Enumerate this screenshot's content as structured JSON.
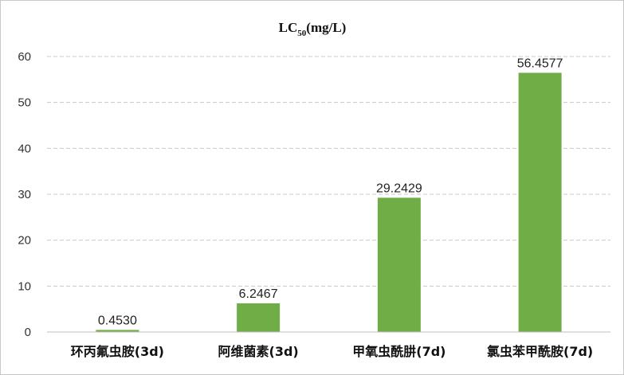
{
  "chart_data": {
    "type": "bar",
    "title": "LC",
    "title_subscript": "50",
    "title_suffix": "(mg/L)",
    "categories": [
      "环丙氟虫胺(3d)",
      "阿维菌素(3d)",
      "甲氧虫酰肼(7d)",
      "氯虫苯甲酰胺(7d)"
    ],
    "values": [
      0.453,
      6.2467,
      29.2429,
      56.4577
    ],
    "data_labels": [
      "0.4530",
      "6.2467",
      "29.2429",
      "56.4577"
    ],
    "ylim": [
      0,
      60
    ],
    "yticks": [
      0,
      10,
      20,
      30,
      40,
      50,
      60
    ],
    "grid": true,
    "legend": "none",
    "bar_color": "#70ad47"
  }
}
